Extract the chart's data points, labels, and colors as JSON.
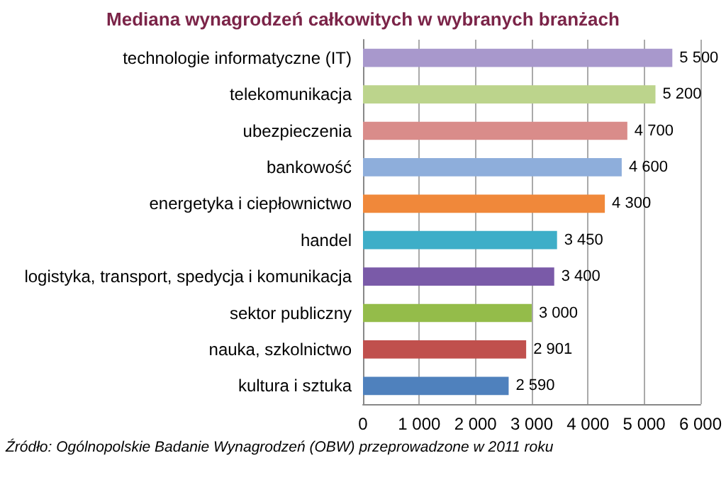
{
  "chart_data": {
    "type": "bar",
    "orientation": "horizontal",
    "title": "Mediana wynagrodzeń całkowitych w wybranych branżach",
    "categories": [
      "technologie informatyczne (IT)",
      "telekomunikacja",
      "ubezpieczenia",
      "bankowość",
      "energetyka i ciepłownictwo",
      "handel",
      "logistyka, transport, spedycja i komunikacja",
      "sektor publiczny",
      "nauka, szkolnictwo",
      "kultura i sztuka"
    ],
    "values": [
      5500,
      5200,
      4700,
      4600,
      4300,
      3450,
      3400,
      3000,
      2901,
      2590
    ],
    "value_labels": [
      "5 500",
      "5 200",
      "4 700",
      "4 600",
      "4 300",
      "3 450",
      "3 400",
      "3 000",
      "2 901",
      "2 590"
    ],
    "colors": [
      "#a898cc",
      "#bcd48c",
      "#d98c8a",
      "#8eaedb",
      "#f0883a",
      "#3eaec8",
      "#7a5aa8",
      "#94bc4a",
      "#c0504d",
      "#4f81bd"
    ],
    "xlim": [
      0,
      6000
    ],
    "xticks": [
      0,
      {
        "value": 1000,
        "label": "1 000"
      },
      {
        "value": 2000,
        "label": "2 000"
      },
      {
        "value": 3000,
        "label": "3 000"
      },
      {
        "value": 4000,
        "label": "4 000"
      },
      {
        "value": 5000,
        "label": "5 000"
      },
      {
        "value": 6000,
        "label": "6 000"
      }
    ],
    "grid": "x",
    "annotations": [
      "Źródło: Ogólnopolskie Badanie Wynagrodzeń (OBW) przeprowadzone w 2011 roku"
    ]
  }
}
